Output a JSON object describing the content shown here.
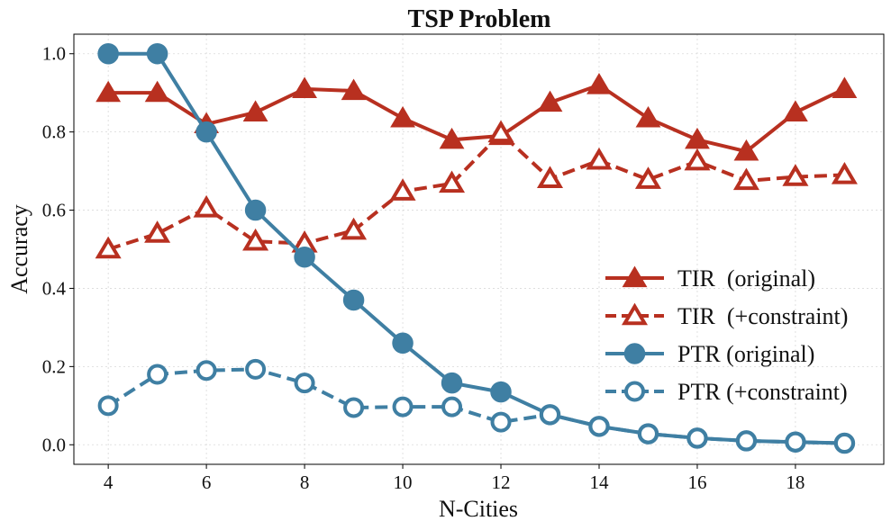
{
  "chart_data": {
    "type": "line",
    "title": "TSP Problem",
    "xlabel": "N-Cities",
    "ylabel": "Accuracy",
    "xlim": [
      3.3,
      19.8
    ],
    "ylim": [
      -0.05,
      1.05
    ],
    "xticks": [
      4,
      6,
      8,
      10,
      12,
      14,
      16,
      18
    ],
    "yticks": [
      0.0,
      0.2,
      0.4,
      0.6,
      0.8,
      1.0
    ],
    "ytick_labels": [
      "0.0",
      "0.2",
      "0.4",
      "0.6",
      "0.8",
      "1.0"
    ],
    "grid": true,
    "legend_position": "center-right",
    "x": [
      4,
      5,
      6,
      7,
      8,
      9,
      10,
      11,
      12,
      13,
      14,
      15,
      16,
      17,
      18,
      19
    ],
    "series": [
      {
        "name": "TIR  (original)",
        "color": "#b83020",
        "marker": "triangle",
        "filled": true,
        "dashed": false,
        "values": [
          0.9,
          0.9,
          0.82,
          0.85,
          0.91,
          0.905,
          0.835,
          0.78,
          0.79,
          0.875,
          0.92,
          0.835,
          0.78,
          0.75,
          0.85,
          0.91
        ]
      },
      {
        "name": "TIR  (+constraint)",
        "color": "#b83020",
        "marker": "triangle",
        "filled": false,
        "dashed": true,
        "values": [
          0.5,
          0.54,
          0.605,
          0.52,
          0.515,
          0.548,
          0.648,
          0.668,
          0.797,
          0.68,
          0.727,
          0.678,
          0.725,
          0.675,
          0.685,
          0.69
        ]
      },
      {
        "name": "PTR (original)",
        "color": "#3f7fa3",
        "marker": "circle",
        "filled": true,
        "dashed": false,
        "values": [
          1.0,
          1.0,
          0.8,
          0.6,
          0.48,
          0.37,
          0.26,
          0.158,
          0.135,
          0.077,
          0.047,
          0.028,
          0.017,
          0.01,
          0.007,
          0.004
        ]
      },
      {
        "name": "PTR (+constraint)",
        "color": "#3f7fa3",
        "marker": "circle",
        "filled": false,
        "dashed": true,
        "values": [
          0.1,
          0.18,
          0.19,
          0.193,
          0.158,
          0.095,
          0.097,
          0.097,
          0.058,
          0.077,
          0.047,
          0.028,
          0.017,
          0.01,
          0.007,
          0.004
        ]
      }
    ]
  }
}
